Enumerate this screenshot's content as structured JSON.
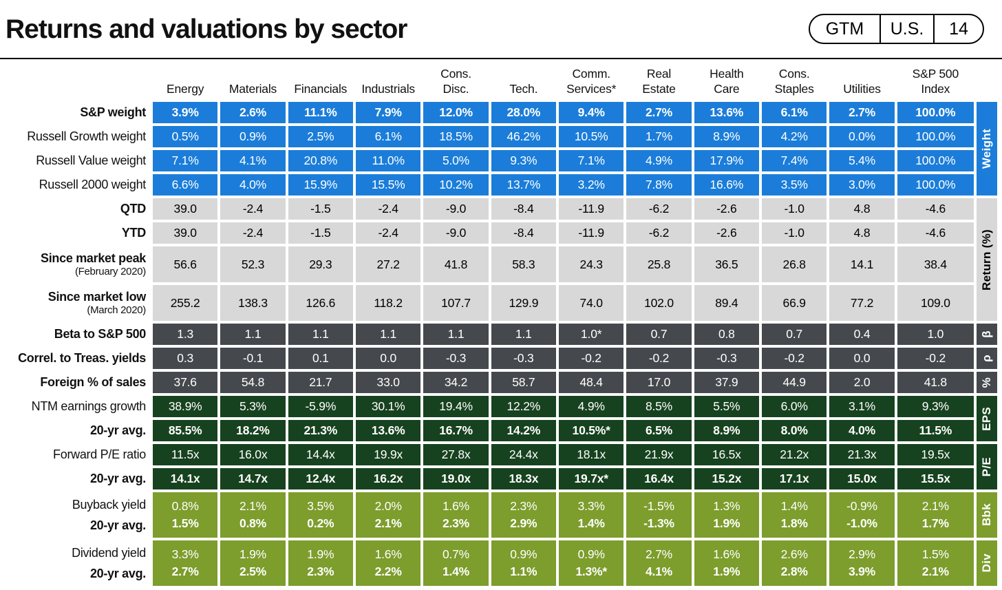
{
  "header": {
    "title": "Returns and valuations by sector",
    "pill": [
      "GTM",
      "U.S.",
      "14"
    ]
  },
  "colors": {
    "blue": "#1b7dd9",
    "gray": "#d8d8d8",
    "darkgray": "#45494d",
    "darkgreen": "#17421f",
    "olive": "#7d9d2d"
  },
  "chart_data": {
    "type": "table",
    "title": "Returns and valuations by sector",
    "columns": [
      "Energy",
      "Materials",
      "Financials",
      "Industrials",
      "Cons.\nDisc.",
      "Tech.",
      "Comm.\nServices*",
      "Real\nEstate",
      "Health\nCare",
      "Cons.\nStaples",
      "Utilities",
      "S&P 500\nIndex"
    ],
    "rows": [
      {
        "label": "S&P weight",
        "bold_label": true,
        "bold_values": true,
        "section": "weight",
        "values": [
          "3.9%",
          "2.6%",
          "11.1%",
          "7.9%",
          "12.0%",
          "28.0%",
          "9.4%",
          "2.7%",
          "13.6%",
          "6.1%",
          "2.7%",
          "100.0%"
        ]
      },
      {
        "label": "Russell Growth weight",
        "section": "weight",
        "values": [
          "0.5%",
          "0.9%",
          "2.5%",
          "6.1%",
          "18.5%",
          "46.2%",
          "10.5%",
          "1.7%",
          "8.9%",
          "4.2%",
          "0.0%",
          "100.0%"
        ]
      },
      {
        "label": "Russell Value weight",
        "section": "weight",
        "values": [
          "7.1%",
          "4.1%",
          "20.8%",
          "11.0%",
          "5.0%",
          "9.3%",
          "7.1%",
          "4.9%",
          "17.9%",
          "7.4%",
          "5.4%",
          "100.0%"
        ]
      },
      {
        "label": "Russell 2000 weight",
        "section": "weight",
        "values": [
          "6.6%",
          "4.0%",
          "15.9%",
          "15.5%",
          "10.2%",
          "13.7%",
          "3.2%",
          "7.8%",
          "16.6%",
          "3.5%",
          "3.0%",
          "100.0%"
        ]
      },
      {
        "label": "QTD",
        "bold_label": true,
        "section": "return",
        "values": [
          "39.0",
          "-2.4",
          "-1.5",
          "-2.4",
          "-9.0",
          "-8.4",
          "-11.9",
          "-6.2",
          "-2.6",
          "-1.0",
          "4.8",
          "-4.6"
        ]
      },
      {
        "label": "YTD",
        "bold_label": true,
        "section": "return",
        "values": [
          "39.0",
          "-2.4",
          "-1.5",
          "-2.4",
          "-9.0",
          "-8.4",
          "-11.9",
          "-6.2",
          "-2.6",
          "-1.0",
          "4.8",
          "-4.6"
        ]
      },
      {
        "label": "Since market peak",
        "sublabel": "(February 2020)",
        "bold_label": true,
        "tall": true,
        "section": "return",
        "values": [
          "56.6",
          "52.3",
          "29.3",
          "27.2",
          "41.8",
          "58.3",
          "24.3",
          "25.8",
          "36.5",
          "26.8",
          "14.1",
          "38.4"
        ]
      },
      {
        "label": "Since market low",
        "sublabel": "(March 2020)",
        "bold_label": true,
        "tall": true,
        "section": "return",
        "values": [
          "255.2",
          "138.3",
          "126.6",
          "118.2",
          "107.7",
          "129.9",
          "74.0",
          "102.0",
          "89.4",
          "66.9",
          "77.2",
          "109.0"
        ]
      },
      {
        "label": "Beta to S&P 500",
        "bold_label": true,
        "section": "beta",
        "values": [
          "1.3",
          "1.1",
          "1.1",
          "1.1",
          "1.1",
          "1.1",
          "1.0*",
          "0.7",
          "0.8",
          "0.7",
          "0.4",
          "1.0"
        ]
      },
      {
        "label": "Correl. to Treas. yields",
        "bold_label": true,
        "section": "beta",
        "values": [
          "0.3",
          "-0.1",
          "0.1",
          "0.0",
          "-0.3",
          "-0.3",
          "-0.2",
          "-0.2",
          "-0.3",
          "-0.2",
          "0.0",
          "-0.2"
        ]
      },
      {
        "label": "Foreign % of sales",
        "bold_label": true,
        "section": "beta",
        "values": [
          "37.6",
          "54.8",
          "21.7",
          "33.0",
          "34.2",
          "58.7",
          "48.4",
          "17.0",
          "37.9",
          "44.9",
          "2.0",
          "41.8"
        ]
      },
      {
        "label": "NTM earnings growth",
        "section": "eps",
        "values": [
          "38.9%",
          "5.3%",
          "-5.9%",
          "30.1%",
          "19.4%",
          "12.2%",
          "4.9%",
          "8.5%",
          "5.5%",
          "6.0%",
          "3.1%",
          "9.3%"
        ]
      },
      {
        "label": "20-yr avg.",
        "bold_label": true,
        "bold_values": true,
        "section": "eps",
        "values": [
          "85.5%",
          "18.2%",
          "21.3%",
          "13.6%",
          "16.7%",
          "14.2%",
          "10.5%*",
          "6.5%",
          "8.9%",
          "8.0%",
          "4.0%",
          "11.5%"
        ]
      },
      {
        "label": "Forward P/E ratio",
        "section": "pe",
        "values": [
          "11.5x",
          "16.0x",
          "14.4x",
          "19.9x",
          "27.8x",
          "24.4x",
          "18.1x",
          "21.9x",
          "16.5x",
          "21.2x",
          "21.3x",
          "19.5x"
        ]
      },
      {
        "label": "20-yr avg.",
        "bold_label": true,
        "bold_values": true,
        "section": "pe",
        "values": [
          "14.1x",
          "14.7x",
          "12.4x",
          "16.2x",
          "19.0x",
          "18.3x",
          "19.7x*",
          "16.4x",
          "15.2x",
          "17.1x",
          "15.0x",
          "15.5x"
        ]
      },
      {
        "label": "Buyback yield",
        "label2": "20-yr avg.",
        "double": true,
        "section": "yield",
        "values": [
          "0.8%",
          "2.1%",
          "3.5%",
          "2.0%",
          "1.6%",
          "2.3%",
          "3.3%",
          "-1.5%",
          "1.3%",
          "1.4%",
          "-0.9%",
          "2.1%"
        ],
        "values2": [
          "1.5%",
          "0.8%",
          "0.2%",
          "2.1%",
          "2.3%",
          "2.9%",
          "1.4%",
          "-1.3%",
          "1.9%",
          "1.8%",
          "-1.0%",
          "1.7%"
        ]
      },
      {
        "label": "Dividend yield",
        "label2": "20-yr avg.",
        "double": true,
        "section": "yield",
        "values": [
          "3.3%",
          "1.9%",
          "1.9%",
          "1.6%",
          "0.7%",
          "0.9%",
          "0.9%",
          "2.7%",
          "1.6%",
          "2.6%",
          "2.9%",
          "1.5%"
        ],
        "values2": [
          "2.7%",
          "2.5%",
          "2.3%",
          "2.2%",
          "1.4%",
          "1.1%",
          "1.3%*",
          "4.1%",
          "1.9%",
          "2.8%",
          "3.9%",
          "2.1%"
        ]
      }
    ],
    "side_labels": [
      {
        "text": "Weight",
        "start": 1,
        "span": 4,
        "section": "weight"
      },
      {
        "text": "Return (%)",
        "start": 5,
        "span": 4,
        "section": "return"
      },
      {
        "text": "β",
        "start": 9,
        "span": 1,
        "section": "beta"
      },
      {
        "text": "ρ",
        "start": 10,
        "span": 1,
        "section": "beta"
      },
      {
        "text": "%",
        "start": 11,
        "span": 1,
        "section": "beta"
      },
      {
        "text": "EPS",
        "start": 12,
        "span": 2,
        "section": "eps"
      },
      {
        "text": "P/E",
        "start": 14,
        "span": 2,
        "section": "pe"
      },
      {
        "text": "Bbk",
        "start": 16,
        "span": 1,
        "section": "yield"
      },
      {
        "text": "Div",
        "start": 17,
        "span": 1,
        "section": "yield"
      }
    ]
  }
}
